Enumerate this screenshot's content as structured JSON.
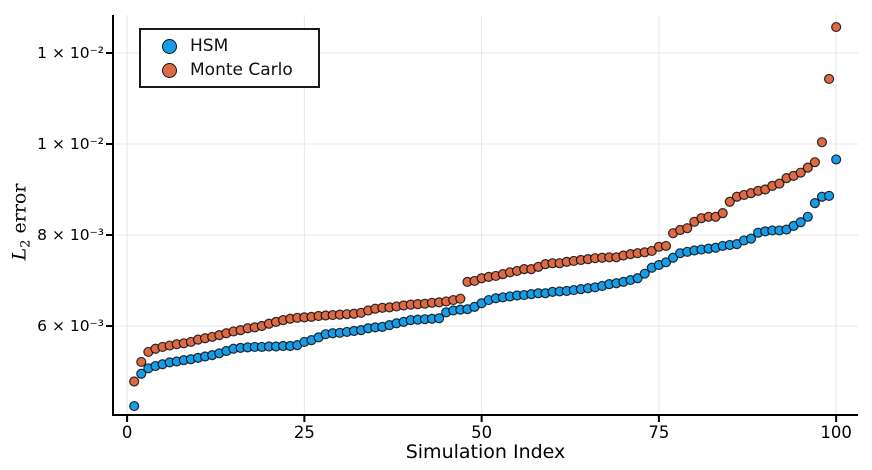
{
  "axes": {
    "xlabel": "Simulation Index",
    "ylabel_main": "L",
    "ylabel_sub": "2",
    "ylabel_rest": " error",
    "x_ticks": [
      {
        "value": 0,
        "label": "0"
      },
      {
        "value": 25,
        "label": "25"
      },
      {
        "value": 50,
        "label": "50"
      },
      {
        "value": 75,
        "label": "75"
      },
      {
        "value": 100,
        "label": "100"
      }
    ],
    "y_ticks": [
      {
        "value": 0.012,
        "label": "1 × 10⁻²"
      },
      {
        "value": 0.01,
        "label": "1 × 10⁻²"
      },
      {
        "value": 0.008,
        "label": "8 × 10⁻³"
      },
      {
        "value": 0.006,
        "label": "6 × 10⁻³"
      }
    ]
  },
  "legend": {
    "items": [
      {
        "label": "HSM",
        "color": "#189CE6"
      },
      {
        "label": "Monte Carlo",
        "color": "#DB6A47"
      }
    ]
  },
  "chart_data": {
    "type": "scatter",
    "title": "",
    "xlabel": "Simulation Index",
    "ylabel": "L₂ error",
    "x_range": [
      1,
      100
    ],
    "xlim": [
      -2,
      103
    ],
    "ylim": [
      0.00404,
      0.01284
    ],
    "grid": true,
    "legend_position": "top-left",
    "marker_stroke": "rgba(0,0,0,0.8)",
    "grid_color": "#e7e7e7",
    "series": [
      {
        "name": "HSM",
        "color": "#189CE6",
        "values": [
          0.00424,
          0.00495,
          0.00507,
          0.00512,
          0.00516,
          0.0052,
          0.00522,
          0.00525,
          0.00527,
          0.0053,
          0.00533,
          0.00536,
          0.0054,
          0.00545,
          0.0055,
          0.00552,
          0.00553,
          0.00554,
          0.00554,
          0.00555,
          0.00555,
          0.00556,
          0.00556,
          0.00558,
          0.00565,
          0.00569,
          0.00575,
          0.00582,
          0.00584,
          0.00585,
          0.00587,
          0.00589,
          0.00591,
          0.00595,
          0.00597,
          0.00598,
          0.00602,
          0.00606,
          0.00609,
          0.00613,
          0.00614,
          0.00615,
          0.00616,
          0.00617,
          0.0063,
          0.00634,
          0.00636,
          0.00637,
          0.00642,
          0.0065,
          0.00657,
          0.00661,
          0.00663,
          0.00665,
          0.00667,
          0.00668,
          0.0067,
          0.00672,
          0.00672,
          0.00675,
          0.00676,
          0.00677,
          0.00679,
          0.00681,
          0.00683,
          0.00685,
          0.00688,
          0.00692,
          0.00694,
          0.00697,
          0.00701,
          0.00705,
          0.00715,
          0.00728,
          0.00734,
          0.0074,
          0.0075,
          0.0076,
          0.00763,
          0.00766,
          0.00768,
          0.0077,
          0.00772,
          0.00776,
          0.00778,
          0.0078,
          0.00788,
          0.00792,
          0.00805,
          0.00808,
          0.0081,
          0.0081,
          0.00812,
          0.0082,
          0.00828,
          0.0084,
          0.0087,
          0.00884,
          0.00886,
          0.00966
        ]
      },
      {
        "name": "Monte Carlo",
        "color": "#DB6A47",
        "values": [
          0.00478,
          0.00521,
          0.00543,
          0.0055,
          0.00554,
          0.00557,
          0.0056,
          0.00562,
          0.00565,
          0.0057,
          0.00573,
          0.00576,
          0.0058,
          0.00584,
          0.00588,
          0.00591,
          0.00595,
          0.00597,
          0.006,
          0.00605,
          0.00609,
          0.00613,
          0.00616,
          0.00618,
          0.00619,
          0.0062,
          0.00622,
          0.00623,
          0.00624,
          0.00625,
          0.00626,
          0.00627,
          0.00629,
          0.00634,
          0.00638,
          0.0064,
          0.00641,
          0.00643,
          0.00645,
          0.00647,
          0.00648,
          0.00649,
          0.00651,
          0.00652,
          0.00654,
          0.00657,
          0.0066,
          0.00697,
          0.00699,
          0.00705,
          0.00708,
          0.0071,
          0.00714,
          0.00718,
          0.00721,
          0.00725,
          0.00725,
          0.0073,
          0.00736,
          0.00738,
          0.00738,
          0.00741,
          0.00743,
          0.00745,
          0.00747,
          0.00749,
          0.0075,
          0.00751,
          0.00751,
          0.00755,
          0.00758,
          0.0076,
          0.00762,
          0.00765,
          0.00774,
          0.00776,
          0.00804,
          0.00811,
          0.00815,
          0.00829,
          0.00837,
          0.0084,
          0.0084,
          0.00848,
          0.00873,
          0.00884,
          0.00888,
          0.00892,
          0.00897,
          0.009,
          0.00908,
          0.00913,
          0.00925,
          0.0093,
          0.00937,
          0.00948,
          0.0096,
          0.01004,
          0.01143,
          0.01257
        ]
      }
    ]
  }
}
